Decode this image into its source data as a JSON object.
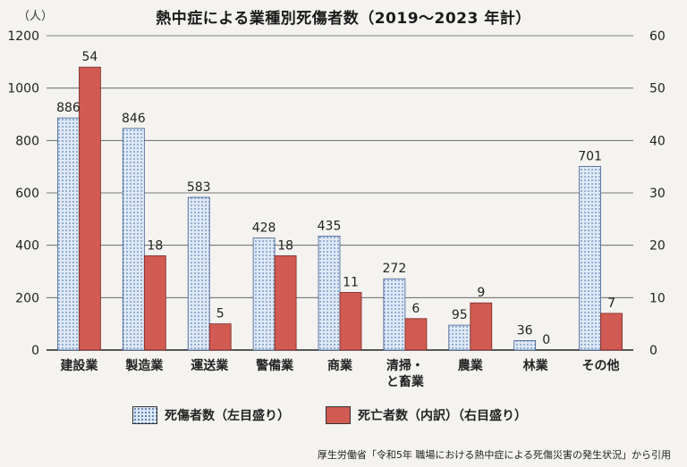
{
  "title": "熱中症による業種別死傷者数（2019〜2023 年計）",
  "unit_label": "（人）",
  "legend": {
    "casualties": "死傷者数（左目盛り）",
    "deaths": "死亡者数（内訳）（右目盛り）"
  },
  "source": "厚生労働省「令和5年 職場における熱中症による死傷災害の発生状況」から引用",
  "colors": {
    "casualty_fill": "#dfe9f5",
    "casualty_dot": "#5b84c2",
    "death_fill": "#d15a52"
  },
  "chart_data": {
    "type": "bar",
    "categories": [
      "建設業",
      "製造業",
      "運送業",
      "警備業",
      "商業",
      "清掃・\nと畜業",
      "農業",
      "林業",
      "その他"
    ],
    "series": [
      {
        "name": "死傷者数（左目盛り）",
        "axis": "left",
        "values": [
          886,
          846,
          583,
          428,
          435,
          272,
          95,
          36,
          701
        ]
      },
      {
        "name": "死亡者数（内訳）（右目盛り）",
        "axis": "right",
        "values": [
          54,
          18,
          5,
          18,
          11,
          6,
          9,
          0,
          7
        ]
      }
    ],
    "left_axis": {
      "ylim": [
        0,
        1200
      ],
      "ticks": [
        0,
        200,
        400,
        600,
        800,
        1000,
        1200
      ]
    },
    "right_axis": {
      "ylim": [
        0,
        60
      ],
      "ticks": [
        0,
        10,
        20,
        30,
        40,
        50,
        60
      ]
    },
    "grid": true
  }
}
